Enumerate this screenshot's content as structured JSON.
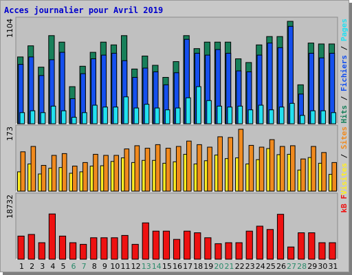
{
  "title": "Acces journalier pour Avril 2019",
  "colors": {
    "frame_bg": "#c8c8c8",
    "panel_bg": "#c0c0c0",
    "hits": "#18805a",
    "files": "#1550ee",
    "pages": "#22e0f0",
    "visits": "#f08a1e",
    "sites": "#ffee22",
    "kbytes": "#ee1111",
    "weekend_label": "#2a8a6a",
    "title": "#0000cc"
  },
  "chart_data": [
    {
      "type": "bar",
      "name": "hits-files-pages",
      "ymax_label": "1104",
      "ylim": [
        0,
        1104
      ],
      "legend": [
        {
          "text": "Pages",
          "color": "#22e0f0"
        },
        {
          "text": "Fichiers",
          "color": "#1550ee"
        },
        {
          "text": "Hits",
          "color": "#18805a"
        }
      ],
      "series": [
        {
          "name": "Hits",
          "values": [
            720,
            840,
            610,
            950,
            880,
            400,
            620,
            770,
            880,
            850,
            950,
            590,
            730,
            630,
            500,
            670,
            950,
            810,
            880,
            880,
            880,
            700,
            660,
            850,
            940,
            940,
            1104,
            420,
            870,
            860,
            860
          ]
        },
        {
          "name": "Fichiers",
          "values": [
            640,
            720,
            520,
            690,
            770,
            270,
            540,
            700,
            740,
            760,
            680,
            500,
            600,
            560,
            420,
            550,
            910,
            760,
            740,
            800,
            760,
            570,
            560,
            740,
            870,
            820,
            1050,
            320,
            760,
            710,
            760
          ]
        },
        {
          "name": "Pages",
          "values": [
            120,
            140,
            120,
            190,
            140,
            70,
            120,
            200,
            180,
            180,
            290,
            170,
            210,
            170,
            150,
            170,
            280,
            400,
            250,
            190,
            180,
            190,
            150,
            200,
            150,
            180,
            220,
            90,
            140,
            140,
            120
          ]
        }
      ]
    },
    {
      "type": "bar",
      "name": "visits-sites",
      "ymax_label": "173",
      "ylim": [
        0,
        173
      ],
      "legend": [
        {
          "text": "Sites",
          "color": "#f08a1e"
        },
        {
          "text": "Visites",
          "color": "#ffee22"
        }
      ],
      "series": [
        {
          "name": "Visites",
          "values": [
            54,
            76,
            48,
            64,
            66,
            50,
            54,
            70,
            71,
            83,
            93,
            80,
            86,
            86,
            78,
            82,
            103,
            76,
            85,
            101,
            91,
            93,
            76,
            88,
            119,
            102,
            103,
            59,
            94,
            78,
            47
          ]
        },
        {
          "name": "Sites",
          "values": [
            110,
            125,
            72,
            100,
            105,
            70,
            80,
            103,
            100,
            100,
            118,
            127,
            120,
            130,
            120,
            125,
            140,
            130,
            123,
            152,
            150,
            173,
            128,
            123,
            144,
            125,
            127,
            90,
            125,
            108,
            80
          ]
        }
      ]
    },
    {
      "type": "bar",
      "name": "kbytes",
      "ymax_label": "18732",
      "ylim": [
        0,
        18732
      ],
      "legend": [
        {
          "text": "kB F",
          "color": "#ee1111"
        }
      ],
      "series": [
        {
          "name": "kB F",
          "values": [
            7000,
            7500,
            5000,
            13700,
            7000,
            5000,
            4500,
            6500,
            6500,
            6500,
            7200,
            4500,
            11000,
            8500,
            8500,
            6000,
            8500,
            8000,
            6500,
            4700,
            5000,
            5000,
            8500,
            10000,
            9000,
            13600,
            3700,
            8000,
            8000,
            5000,
            5000
          ]
        }
      ]
    }
  ],
  "x_labels": [
    "1",
    "2",
    "3",
    "4",
    "5",
    "6",
    "7",
    "8",
    "9",
    "10",
    "11",
    "12",
    "13",
    "14",
    "15",
    "16",
    "17",
    "18",
    "19",
    "20",
    "21",
    "22",
    "23",
    "24",
    "25",
    "26",
    "27",
    "28",
    "29",
    "30",
    "31"
  ],
  "weekend_days": [
    "6",
    "7",
    "13",
    "14",
    "20",
    "21",
    "27",
    "28"
  ]
}
